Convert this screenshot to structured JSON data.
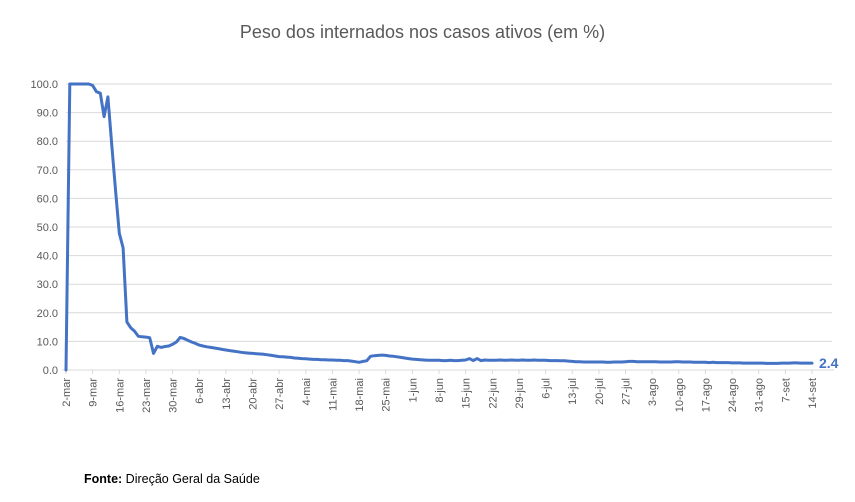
{
  "title": "Peso dos internados nos casos ativos (em %)",
  "footer": {
    "source_label": "Fonte:",
    "source_text": " Direção Geral da Saúde"
  },
  "chart_data": {
    "type": "line",
    "title": "Peso dos internados nos casos ativos (em %)",
    "xlabel": "",
    "ylabel": "",
    "ylim": [
      0,
      100
    ],
    "y_tick_labels": [
      "0.0",
      "10.0",
      "20.0",
      "30.0",
      "40.0",
      "50.0",
      "60.0",
      "70.0",
      "80.0",
      "90.0",
      "100.0"
    ],
    "x_tick_labels": [
      "2-mar",
      "9-mar",
      "16-mar",
      "23-mar",
      "30-mar",
      "6-abr",
      "13-abr",
      "20-abr",
      "27-abr",
      "4-mai",
      "11-mai",
      "18-mai",
      "25-mai",
      "1-jun",
      "8-jun",
      "15-jun",
      "22-jun",
      "29-jun",
      "6-jul",
      "13-jul",
      "20-jul",
      "27-jul",
      "3-ago",
      "10-ago",
      "17-ago",
      "24-ago",
      "31-ago",
      "7-set",
      "14-set"
    ],
    "tick_interval_days": 7,
    "grid": "horizontal-only",
    "legend": "none",
    "end_label": "2.4",
    "line_color": "#4472C4",
    "gridline_color": "#D9D9D9",
    "axis_label_color": "#595959",
    "title_color": "#595959",
    "series": [
      {
        "name": "Peso dos internados nos casos ativos (%)",
        "x_unit": "day (daily points, first point 2-mar)",
        "values": [
          0,
          100,
          100,
          100,
          100,
          100,
          100,
          99.5,
          97.3,
          96.8,
          88.6,
          95.5,
          79,
          63,
          47.8,
          42.7,
          16.8,
          14.8,
          13.6,
          11.8,
          11.6,
          11.5,
          11.3,
          5.8,
          8.3,
          7.9,
          8.2,
          8.4,
          9.0,
          9.8,
          11.4,
          11.0,
          10.4,
          9.8,
          9.3,
          8.7,
          8.4,
          8.1,
          7.9,
          7.7,
          7.5,
          7.2,
          7.0,
          6.8,
          6.6,
          6.4,
          6.2,
          6.0,
          5.9,
          5.8,
          5.7,
          5.6,
          5.5,
          5.3,
          5.1,
          4.9,
          4.7,
          4.6,
          4.5,
          4.4,
          4.2,
          4.1,
          4.0,
          3.9,
          3.8,
          3.7,
          3.7,
          3.6,
          3.6,
          3.5,
          3.5,
          3.4,
          3.4,
          3.3,
          3.3,
          3.1,
          2.9,
          2.7,
          3.0,
          3.2,
          4.8,
          5.0,
          5.1,
          5.2,
          5.1,
          4.9,
          4.8,
          4.6,
          4.4,
          4.2,
          4.0,
          3.8,
          3.7,
          3.6,
          3.5,
          3.4,
          3.4,
          3.4,
          3.4,
          3.3,
          3.3,
          3.4,
          3.3,
          3.3,
          3.4,
          3.5,
          4.0,
          3.3,
          4.0,
          3.3,
          3.5,
          3.4,
          3.4,
          3.4,
          3.5,
          3.4,
          3.4,
          3.5,
          3.4,
          3.4,
          3.5,
          3.4,
          3.4,
          3.5,
          3.4,
          3.4,
          3.4,
          3.3,
          3.3,
          3.3,
          3.2,
          3.2,
          3.1,
          3.0,
          2.9,
          2.9,
          2.8,
          2.8,
          2.8,
          2.8,
          2.8,
          2.8,
          2.7,
          2.7,
          2.8,
          2.8,
          2.8,
          2.9,
          3.0,
          3.0,
          2.9,
          2.9,
          2.9,
          2.9,
          2.9,
          2.9,
          2.8,
          2.8,
          2.8,
          2.8,
          2.9,
          2.9,
          2.8,
          2.8,
          2.8,
          2.7,
          2.7,
          2.7,
          2.7,
          2.6,
          2.7,
          2.6,
          2.6,
          2.6,
          2.6,
          2.5,
          2.5,
          2.5,
          2.4,
          2.4,
          2.4,
          2.4,
          2.4,
          2.4,
          2.3,
          2.3,
          2.3,
          2.3,
          2.4,
          2.4,
          2.4,
          2.5,
          2.5,
          2.4,
          2.4,
          2.4,
          2.4
        ]
      }
    ]
  }
}
